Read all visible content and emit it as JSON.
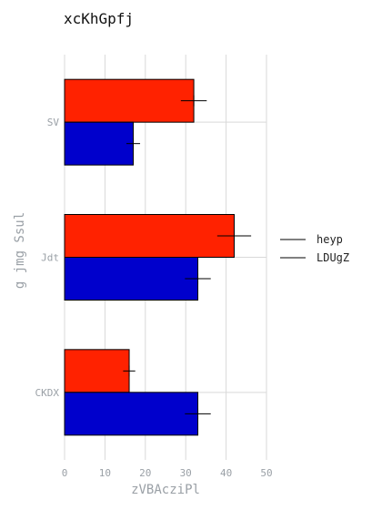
{
  "chart_data": {
    "type": "bar",
    "orientation": "horizontal",
    "title": "xcKhGpfj",
    "xlabel": "zVBAcziPl",
    "ylabel": "g jmg Ssul",
    "xlim": [
      0,
      50
    ],
    "xticks": [
      0,
      10,
      20,
      30,
      40,
      50
    ],
    "categories": [
      "CKDX",
      "Jdt",
      "SV"
    ],
    "grid": true,
    "legend_position": "right",
    "error_bars": true,
    "series": [
      {
        "name": "heyp",
        "color": "#ff2200",
        "values": [
          16,
          42,
          32
        ],
        "errors": [
          1.5,
          4.2,
          3.2
        ]
      },
      {
        "name": "LDUgZ",
        "color": "#0000cc",
        "values": [
          33,
          33,
          17
        ],
        "errors": [
          3.2,
          3.2,
          1.7
        ]
      }
    ]
  }
}
